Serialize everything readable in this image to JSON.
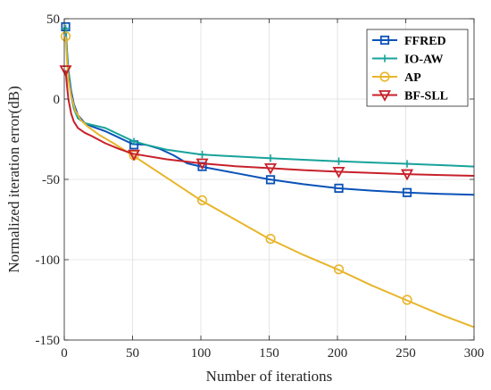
{
  "chart_data": {
    "type": "line",
    "title": "",
    "xlabel": "Number of iterations",
    "ylabel": "Normalized iteration error(dB)",
    "xlim": [
      0,
      300
    ],
    "ylim": [
      -150,
      50
    ],
    "xticks": [
      0,
      50,
      100,
      150,
      200,
      250,
      300
    ],
    "yticks": [
      -150,
      -100,
      -50,
      0,
      50
    ],
    "grid": true,
    "legend_position": "top-right",
    "series": [
      {
        "name": "FFRED",
        "color": "#0a52b8",
        "marker": "square",
        "x": [
          1,
          2,
          3,
          5,
          7,
          10,
          15,
          20,
          30,
          40,
          50,
          60,
          70,
          80,
          90,
          100,
          125,
          150,
          175,
          200,
          225,
          250,
          275,
          300
        ],
        "y": [
          45,
          30,
          18,
          5,
          -3,
          -10,
          -15,
          -17,
          -20,
          -24,
          -28,
          -28.5,
          -31,
          -35,
          -40,
          -42,
          -46,
          -50,
          -53,
          -55.5,
          -57,
          -58.2,
          -59,
          -59.6
        ],
        "marker_x": [
          1,
          51,
          101,
          151,
          201,
          251
        ],
        "marker_y": [
          45,
          -28.5,
          -42,
          -50.2,
          -55.5,
          -58.2
        ]
      },
      {
        "name": "IO-AW",
        "color": "#16a39a",
        "marker": "plus",
        "x": [
          1,
          2,
          3,
          5,
          7,
          10,
          15,
          20,
          30,
          40,
          50,
          60,
          75,
          100,
          125,
          150,
          175,
          200,
          225,
          250,
          275,
          300
        ],
        "y": [
          44,
          28,
          16,
          2,
          -6,
          -12,
          -15,
          -16,
          -18,
          -22,
          -26,
          -28.5,
          -31.5,
          -34.5,
          -35.7,
          -36.8,
          -37.8,
          -38.7,
          -39.5,
          -40.3,
          -41.1,
          -42
        ],
        "marker_x": [
          1,
          51,
          101,
          151,
          201,
          251
        ],
        "marker_y": [
          44,
          -26.5,
          -34.5,
          -36.8,
          -38.7,
          -40.3
        ]
      },
      {
        "name": "AP",
        "color": "#e8b52a",
        "marker": "circle",
        "x": [
          1,
          2,
          3,
          5,
          8,
          12,
          17,
          25,
          35,
          50,
          75,
          100,
          125,
          150,
          175,
          200,
          225,
          250,
          275,
          300
        ],
        "y": [
          39,
          24,
          12,
          2,
          -7,
          -13,
          -17,
          -22,
          -27,
          -35,
          -49,
          -63,
          -75,
          -87,
          -97,
          -106,
          -116,
          -125,
          -134,
          -142
        ],
        "marker_x": [
          1,
          51,
          101,
          151,
          201,
          251
        ],
        "marker_y": [
          39,
          -35,
          -63,
          -87,
          -106,
          -125
        ]
      },
      {
        "name": "BF-SLL",
        "color": "#c8202a",
        "marker": "triangle-down",
        "x": [
          1,
          2,
          3,
          5,
          7,
          10,
          15,
          20,
          30,
          40,
          50,
          75,
          100,
          125,
          150,
          175,
          200,
          225,
          250,
          275,
          300
        ],
        "y": [
          18,
          8,
          0,
          -9,
          -14,
          -18,
          -21,
          -23,
          -27.5,
          -31,
          -34,
          -37.5,
          -40,
          -41.8,
          -43,
          -44.2,
          -45.2,
          -46,
          -46.7,
          -47.3,
          -47.8
        ],
        "marker_x": [
          1,
          51,
          101,
          151,
          201,
          251
        ],
        "marker_y": [
          18,
          -34.5,
          -40,
          -43,
          -45.2,
          -46.7
        ]
      }
    ]
  }
}
